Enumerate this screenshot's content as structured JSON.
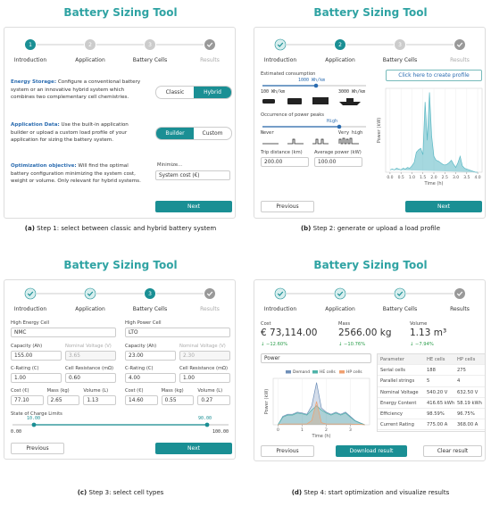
{
  "app_title": "Battery Sizing Tool",
  "steps": [
    {
      "number": "1",
      "label": "Introduction"
    },
    {
      "number": "2",
      "label": "Application"
    },
    {
      "number": "3",
      "label": "Battery Cells"
    },
    {
      "label": "Results"
    }
  ],
  "panel_a": {
    "sections": [
      {
        "label": "Energy Storage:",
        "text": "Configure a conventional battery system or an innovative hybrid system which combines two complementary cell chemistries.",
        "options": [
          "Classic",
          "Hybrid"
        ]
      },
      {
        "label": "Application Data:",
        "text": "Use the built-in application builder or upload a custom load profile of your application for sizing the battery system.",
        "options": [
          "Builder",
          "Custom"
        ]
      },
      {
        "label": "Optimization objective:",
        "text": "Will find the optimal battery configuration minimizing the system cost, weight or volume. Only relevant for hybrid systems.",
        "select_label": "Minimize...",
        "select_value": "System cost (€)"
      }
    ],
    "next": "Next",
    "caption_tag": "(a)",
    "caption": "Step 1: select between classic and hybrid battery system"
  },
  "panel_b": {
    "consumption_label": "Estimated consumption",
    "consumption_value": "1000 Wh/km",
    "consumption_min": "100 Wh/km",
    "consumption_max": "3000 Wh/km",
    "peaks_label": "Occurrence of power peaks",
    "peaks_value": "High",
    "peaks_min": "Never",
    "peaks_max": "Very high",
    "trip_label": "Trip distance (km)",
    "trip_value": "200.00",
    "power_label": "Average power (kW)",
    "power_value": "100.00",
    "profile_button": "Click here to create profile",
    "previous": "Previous",
    "next": "Next",
    "caption_tag": "(b)",
    "caption": "Step 2: generate or upload a load profile"
  },
  "panel_c": {
    "columns": [
      {
        "title": "High Energy Cell",
        "cell": "NMC",
        "rows": [
          [
            {
              "label": "Capacity (Ah)",
              "value": "155.00"
            },
            {
              "label": "Nominal Voltage (V)",
              "value": "3.65",
              "disabled": true
            }
          ],
          [
            {
              "label": "C-Rating (C)",
              "value": "1.00"
            },
            {
              "label": "Cell Resistance (mΩ)",
              "value": "0.60"
            }
          ],
          [
            {
              "label": "Cost (€)",
              "value": "77.10"
            },
            {
              "label": "Mass (kg)",
              "value": "2.65"
            },
            {
              "label": "Volume (L)",
              "value": "1.13"
            }
          ]
        ]
      },
      {
        "title": "High Power Cell",
        "cell": "LTO",
        "rows": [
          [
            {
              "label": "Capacity (Ah)",
              "value": "23.00"
            },
            {
              "label": "Nominal Voltage (V)",
              "value": "2.30",
              "disabled": true
            }
          ],
          [
            {
              "label": "C-Rating (C)",
              "value": "4.00"
            },
            {
              "label": "Cell Resistance (mΩ)",
              "value": "1.00"
            }
          ],
          [
            {
              "label": "Cost (€)",
              "value": "14.60"
            },
            {
              "label": "Mass (kg)",
              "value": "0.55"
            },
            {
              "label": "Volume (L)",
              "value": "0.27"
            }
          ]
        ]
      }
    ],
    "soc_label": "State of Charge Limits",
    "soc_low": "10.00",
    "soc_high": "90.00",
    "soc_min": "0.00",
    "soc_max": "100.00",
    "previous": "Previous",
    "next": "Next",
    "caption_tag": "(c)",
    "caption": "Step 3: select cell types"
  },
  "panel_d": {
    "metrics": [
      {
        "label": "Cost",
        "value": "€ 73,114.00",
        "change": "↓ −12.60%"
      },
      {
        "label": "Mass",
        "value": "2566.00 kg",
        "change": "↓ −10.76%"
      },
      {
        "label": "Volume",
        "value": "1.13 m³",
        "change": "↓ −7.94%"
      }
    ],
    "select_value": "Power",
    "table": {
      "header": [
        "Parameter",
        "HE cells",
        "HP cells"
      ],
      "rows": [
        [
          "Serial cells",
          "188",
          "275"
        ],
        [
          "Parallel strings",
          "5",
          "4"
        ],
        [
          "Nominal Voltage",
          "540.20 V",
          "632.50 V"
        ],
        [
          "Energy Content",
          "416.65 kWh",
          "58.19 kWh"
        ],
        [
          "Efficiency",
          "98.59%",
          "96.75%"
        ],
        [
          "Current Rating",
          "775.00 A",
          "368.00 A"
        ]
      ]
    },
    "previous": "Previous",
    "download": "Download result",
    "clear": "Clear result",
    "caption_tag": "(d)",
    "caption": "Step 4: start optimization and visualize results"
  },
  "chart_data": [
    {
      "type": "area",
      "x_label": "Time (h)",
      "y_label": "Power (kW)",
      "color": "#5bb8c4",
      "grid": true,
      "x": [
        0,
        0.1,
        0.2,
        0.3,
        0.4,
        0.5,
        0.6,
        0.7,
        0.8,
        0.9,
        1.0,
        1.1,
        1.2,
        1.3,
        1.4,
        1.5,
        1.6,
        1.7,
        1.8,
        1.9,
        2.0,
        2.1,
        2.2,
        2.3,
        2.4,
        2.5,
        2.6,
        2.7,
        2.8,
        2.9,
        3.0,
        3.1,
        3.2,
        3.3,
        3.4,
        3.5,
        3.6,
        3.7,
        3.8,
        3.9,
        4.0
      ],
      "values": [
        3,
        4,
        3,
        5,
        4,
        3,
        5,
        4,
        6,
        5,
        8,
        12,
        25,
        28,
        30,
        22,
        88,
        40,
        100,
        45,
        20,
        15,
        14,
        12,
        10,
        9,
        10,
        12,
        15,
        10,
        6,
        12,
        20,
        8,
        5,
        4,
        3,
        2,
        1,
        0,
        0
      ],
      "xlim": [
        -0.2,
        4.2
      ],
      "ylim": [
        0,
        105
      ],
      "xticks": [
        {
          "value": 0,
          "label": "0.0"
        },
        {
          "value": 0.5,
          "label": "0.5"
        },
        {
          "value": 1,
          "label": "1.0"
        },
        {
          "value": 1.5,
          "label": "1.5"
        },
        {
          "value": 2,
          "label": "2.0"
        },
        {
          "value": 2.5,
          "label": "2.5"
        },
        {
          "value": 3,
          "label": "3.0"
        },
        {
          "value": 3.5,
          "label": "3.5"
        },
        {
          "value": 4,
          "label": "4.0"
        }
      ]
    },
    {
      "type": "line",
      "x_label": "Time (h)",
      "y_label": "Power (kW)",
      "legend": "top",
      "grid": true,
      "x": [
        0,
        0.2,
        0.4,
        0.6,
        0.8,
        1.0,
        1.2,
        1.4,
        1.6,
        1.8,
        2.0,
        2.2,
        2.4,
        2.6,
        2.8,
        3.0,
        3.2,
        3.4,
        3.6
      ],
      "series": [
        {
          "name": "Demand",
          "color": "#6f8fb8",
          "values": [
            0,
            20,
            25,
            25,
            30,
            28,
            25,
            45,
            100,
            40,
            30,
            25,
            30,
            25,
            30,
            20,
            10,
            5,
            0
          ]
        },
        {
          "name": "HE cells",
          "color": "#4fb3a9",
          "values": [
            0,
            18,
            23,
            23,
            28,
            26,
            23,
            35,
            45,
            35,
            28,
            23,
            28,
            23,
            28,
            18,
            9,
            4,
            0
          ]
        },
        {
          "name": "HP cells",
          "color": "#f0a070",
          "values": [
            0,
            2,
            2,
            2,
            2,
            2,
            2,
            10,
            55,
            5,
            2,
            2,
            2,
            2,
            2,
            2,
            1,
            1,
            0
          ]
        }
      ],
      "xlim": [
        -0.2,
        3.8
      ],
      "ylim": [
        0,
        110
      ],
      "xticks": [
        0,
        1,
        2,
        3
      ]
    }
  ]
}
